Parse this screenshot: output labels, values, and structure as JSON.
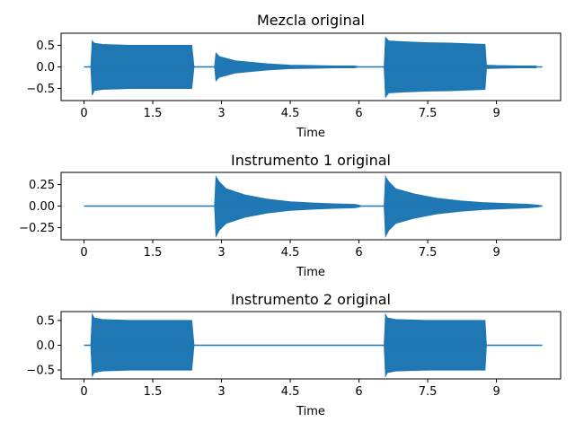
{
  "chart_data": [
    {
      "type": "line",
      "title": "Mezcla original",
      "xlabel": "Time",
      "ylabel": "",
      "xlim": [
        -0.5,
        10.4
      ],
      "ylim": [
        -0.78,
        0.78
      ],
      "xticks": [
        0,
        1.5,
        3,
        4.5,
        6,
        7.5,
        9
      ],
      "xtick_labels": [
        "0",
        "1.5",
        "3",
        "4.5",
        "6",
        "7.5",
        "9"
      ],
      "yticks": [
        -0.5,
        0.0,
        0.5
      ],
      "ytick_labels": [
        "−0.5",
        "0.0",
        "0.5"
      ],
      "color": "#1f77b4",
      "envelope": {
        "x": [
          0.0,
          0.15,
          0.18,
          0.22,
          0.4,
          1.0,
          2.0,
          2.35,
          2.4,
          2.85,
          2.88,
          2.95,
          3.3,
          4.0,
          4.5,
          5.0,
          5.5,
          5.9,
          6.0,
          6.05,
          6.55,
          6.58,
          6.65,
          7.0,
          7.5,
          8.0,
          8.5,
          8.75,
          8.78,
          9.0,
          9.5,
          9.85,
          9.9,
          10.0
        ],
        "upper": [
          0.0,
          0.0,
          0.6,
          0.55,
          0.52,
          0.5,
          0.5,
          0.5,
          0.0,
          0.0,
          0.32,
          0.24,
          0.14,
          0.07,
          0.04,
          0.03,
          0.02,
          0.02,
          0.0,
          0.0,
          0.0,
          0.68,
          0.6,
          0.58,
          0.56,
          0.55,
          0.53,
          0.52,
          0.04,
          0.03,
          0.02,
          0.02,
          0.0,
          0.0
        ],
        "lower": [
          0.0,
          0.0,
          -0.65,
          -0.55,
          -0.52,
          -0.5,
          -0.5,
          -0.5,
          0.0,
          0.0,
          -0.32,
          -0.24,
          -0.14,
          -0.07,
          -0.04,
          -0.03,
          -0.02,
          -0.02,
          0.0,
          0.0,
          0.0,
          -0.7,
          -0.6,
          -0.58,
          -0.56,
          -0.55,
          -0.53,
          -0.52,
          -0.04,
          -0.03,
          -0.02,
          -0.02,
          0.0,
          0.0
        ]
      }
    },
    {
      "type": "line",
      "title": "Instrumento 1 original",
      "xlabel": "Time",
      "ylabel": "",
      "xlim": [
        -0.5,
        10.4
      ],
      "ylim": [
        -0.39,
        0.39
      ],
      "xticks": [
        0,
        1.5,
        3,
        4.5,
        6,
        7.5,
        9
      ],
      "xtick_labels": [
        "0",
        "1.5",
        "3",
        "4.5",
        "6",
        "7.5",
        "9"
      ],
      "yticks": [
        -0.25,
        0.0,
        0.25
      ],
      "ytick_labels": [
        "−0.25",
        "0.00",
        "0.25"
      ],
      "color": "#1f77b4",
      "envelope": {
        "x": [
          0.0,
          2.85,
          2.88,
          2.95,
          3.1,
          3.5,
          4.0,
          4.5,
          5.0,
          5.5,
          5.9,
          6.0,
          6.05,
          6.55,
          6.58,
          6.65,
          6.8,
          7.2,
          7.7,
          8.2,
          8.7,
          9.2,
          9.7,
          9.9,
          10.0
        ],
        "upper": [
          0.0,
          0.0,
          0.34,
          0.28,
          0.2,
          0.13,
          0.08,
          0.05,
          0.035,
          0.025,
          0.02,
          0.01,
          0.0,
          0.0,
          0.34,
          0.28,
          0.2,
          0.14,
          0.09,
          0.06,
          0.04,
          0.03,
          0.02,
          0.01,
          0.0
        ],
        "lower": [
          0.0,
          0.0,
          -0.35,
          -0.28,
          -0.2,
          -0.13,
          -0.08,
          -0.05,
          -0.035,
          -0.025,
          -0.02,
          -0.01,
          0.0,
          0.0,
          -0.35,
          -0.28,
          -0.2,
          -0.14,
          -0.09,
          -0.06,
          -0.04,
          -0.03,
          -0.02,
          -0.01,
          0.0
        ]
      }
    },
    {
      "type": "line",
      "title": "Instrumento 2 original",
      "xlabel": "Time",
      "ylabel": "",
      "xlim": [
        -0.5,
        10.4
      ],
      "ylim": [
        -0.68,
        0.68
      ],
      "xticks": [
        0,
        1.5,
        3,
        4.5,
        6,
        7.5,
        9
      ],
      "xtick_labels": [
        "0",
        "1.5",
        "3",
        "4.5",
        "6",
        "7.5",
        "9"
      ],
      "yticks": [
        -0.5,
        0.0,
        0.5
      ],
      "ytick_labels": [
        "−0.5",
        "0.0",
        "0.5"
      ],
      "color": "#1f77b4",
      "envelope": {
        "x": [
          0.0,
          0.15,
          0.18,
          0.22,
          0.4,
          1.0,
          2.0,
          2.35,
          2.4,
          6.55,
          6.58,
          6.62,
          6.8,
          7.5,
          8.5,
          8.75,
          8.78,
          10.0
        ],
        "upper": [
          0.0,
          0.0,
          0.62,
          0.55,
          0.52,
          0.5,
          0.5,
          0.5,
          0.0,
          0.0,
          0.62,
          0.55,
          0.52,
          0.5,
          0.5,
          0.5,
          0.0,
          0.0
        ],
        "lower": [
          0.0,
          0.0,
          -0.62,
          -0.55,
          -0.52,
          -0.5,
          -0.5,
          -0.5,
          0.0,
          0.0,
          -0.62,
          -0.55,
          -0.52,
          -0.5,
          -0.5,
          -0.5,
          0.0,
          0.0
        ]
      }
    }
  ]
}
